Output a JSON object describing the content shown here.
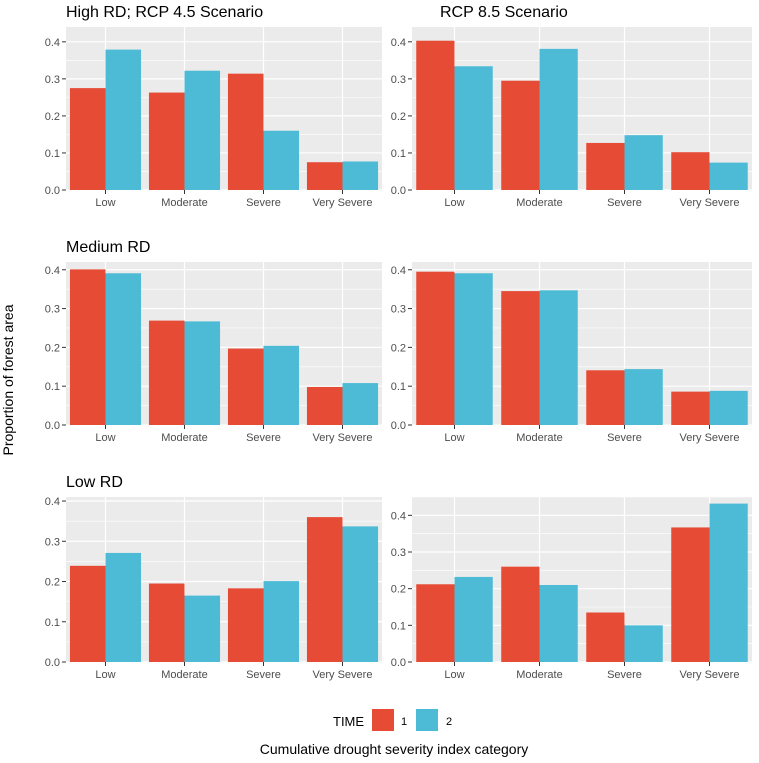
{
  "chart_data": {
    "type": "bar",
    "ylabel": "Proportion of forest area",
    "xlabel": "Cumulative drought severity index category",
    "categories": [
      "Low",
      "Moderate",
      "Severe",
      "Very Severe"
    ],
    "y_ticks": [
      "0.0",
      "0.1",
      "0.2",
      "0.3",
      "0.4"
    ],
    "legend": {
      "title": "TIME",
      "position": "bottom",
      "entries": [
        {
          "label": "1",
          "color": "#E64B35"
        },
        {
          "label": "2",
          "color": "#4DBBD5"
        }
      ]
    },
    "panels": [
      {
        "title": "High RD; RCP 4.5 Scenario",
        "ylim": [
          0,
          0.44
        ],
        "series": [
          {
            "name": "1",
            "values": [
              0.275,
              0.263,
              0.314,
              0.075
            ]
          },
          {
            "name": "2",
            "values": [
              0.379,
              0.322,
              0.16,
              0.077
            ]
          }
        ]
      },
      {
        "title": "RCP 8.5 Scenario",
        "ylim": [
          0,
          0.44
        ],
        "series": [
          {
            "name": "1",
            "values": [
              0.403,
              0.295,
              0.127,
              0.102
            ]
          },
          {
            "name": "2",
            "values": [
              0.334,
              0.381,
              0.148,
              0.074
            ]
          }
        ]
      },
      {
        "title": "Medium RD",
        "ylim": [
          0,
          0.42
        ],
        "series": [
          {
            "name": "1",
            "values": [
              0.401,
              0.269,
              0.197,
              0.098
            ]
          },
          {
            "name": "2",
            "values": [
              0.391,
              0.267,
              0.204,
              0.108
            ]
          }
        ]
      },
      {
        "title": "",
        "ylim": [
          0,
          0.42
        ],
        "series": [
          {
            "name": "1",
            "values": [
              0.395,
              0.345,
              0.141,
              0.086
            ]
          },
          {
            "name": "2",
            "values": [
              0.391,
              0.347,
              0.144,
              0.088
            ]
          }
        ]
      },
      {
        "title": "Low RD",
        "ylim": [
          0,
          0.41
        ],
        "series": [
          {
            "name": "1",
            "values": [
              0.239,
              0.195,
              0.183,
              0.36
            ]
          },
          {
            "name": "2",
            "values": [
              0.271,
              0.165,
              0.201,
              0.337
            ]
          }
        ]
      },
      {
        "title": "",
        "ylim": [
          0,
          0.45
        ],
        "series": [
          {
            "name": "1",
            "values": [
              0.212,
              0.26,
              0.135,
              0.367
            ]
          },
          {
            "name": "2",
            "values": [
              0.232,
              0.21,
              0.1,
              0.432
            ]
          }
        ]
      }
    ]
  },
  "colors": {
    "series1": "#E64B35",
    "series2": "#4DBBD5",
    "panel_bg": "#EBEBEB",
    "grid": "#FFFFFF"
  }
}
